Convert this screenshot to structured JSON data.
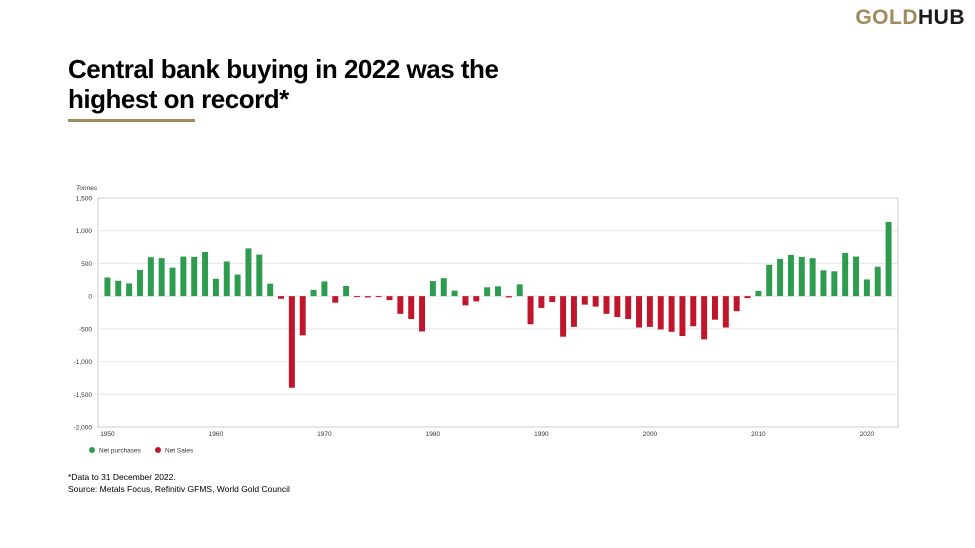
{
  "logo": {
    "part1": "GOLD",
    "part2": "HUB",
    "gold_color": "#a08a5e",
    "dark_color": "#1a1a1a"
  },
  "title": {
    "line1": "Central bank buying in 2022 was the",
    "line2": "highest on record*"
  },
  "footnote": "*Data to 31 December 2022.",
  "source": "Source: Metals Focus, Refinitiv GFMS, World Gold Council",
  "colors": {
    "positive": "#2e9c4e",
    "negative": "#c0162b",
    "grid": "#e6e6e6",
    "axis_text": "#333333"
  },
  "chart_data": {
    "type": "bar",
    "ylabel": "Tonnes",
    "ylim": [
      -2000,
      1500
    ],
    "yticks": [
      1500,
      1000,
      500,
      0,
      -500,
      -1000,
      -1500,
      -2000
    ],
    "ytick_labels": [
      "1,500",
      "1,000",
      "500",
      "0",
      "-500",
      "-1,000",
      "-1,500",
      "-2,000"
    ],
    "xlim": [
      1950,
      2022
    ],
    "xticks": [
      1950,
      1960,
      1970,
      1980,
      1990,
      2000,
      2010,
      2020
    ],
    "x": [
      1950,
      1951,
      1952,
      1953,
      1954,
      1955,
      1956,
      1957,
      1958,
      1959,
      1960,
      1961,
      1962,
      1963,
      1964,
      1965,
      1966,
      1967,
      1968,
      1969,
      1970,
      1971,
      1972,
      1973,
      1974,
      1975,
      1976,
      1977,
      1978,
      1979,
      1980,
      1981,
      1982,
      1983,
      1984,
      1985,
      1986,
      1987,
      1988,
      1989,
      1990,
      1991,
      1992,
      1993,
      1994,
      1995,
      1996,
      1997,
      1998,
      1999,
      2000,
      2001,
      2002,
      2003,
      2004,
      2005,
      2006,
      2007,
      2008,
      2009,
      2010,
      2011,
      2012,
      2013,
      2014,
      2015,
      2016,
      2017,
      2018,
      2019,
      2020,
      2021,
      2022
    ],
    "values": [
      285,
      235,
      195,
      400,
      595,
      580,
      435,
      605,
      600,
      675,
      265,
      530,
      330,
      730,
      635,
      190,
      -40,
      -1400,
      -600,
      95,
      225,
      -100,
      155,
      -15,
      -20,
      -15,
      -60,
      -270,
      -350,
      -540,
      230,
      275,
      85,
      -140,
      -80,
      135,
      150,
      -20,
      180,
      -430,
      -180,
      -90,
      -620,
      -470,
      -130,
      -160,
      -270,
      -320,
      -350,
      -480,
      -470,
      -510,
      -545,
      -610,
      -460,
      -660,
      -360,
      -480,
      -230,
      -30,
      80,
      480,
      570,
      630,
      600,
      580,
      395,
      380,
      660,
      605,
      255,
      450,
      1135
    ],
    "legend": [
      {
        "label": "Net purchases",
        "color": "#2e9c4e"
      },
      {
        "label": "Net Sales",
        "color": "#c0162b"
      }
    ],
    "legend_position": "bottom-left",
    "grid": true
  }
}
